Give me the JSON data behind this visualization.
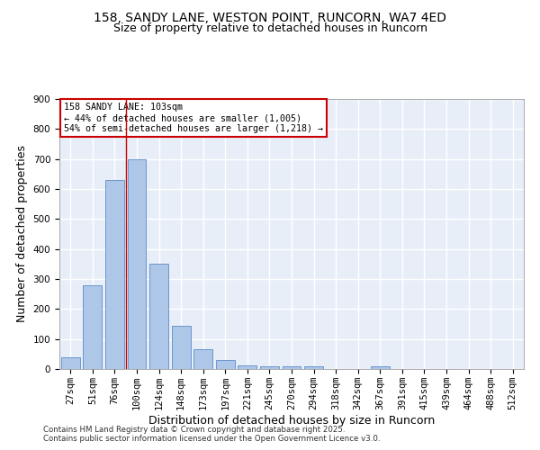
{
  "title": "158, SANDY LANE, WESTON POINT, RUNCORN, WA7 4ED",
  "subtitle": "Size of property relative to detached houses in Runcorn",
  "xlabel": "Distribution of detached houses by size in Runcorn",
  "ylabel": "Number of detached properties",
  "categories": [
    "27sqm",
    "51sqm",
    "76sqm",
    "100sqm",
    "124sqm",
    "148sqm",
    "173sqm",
    "197sqm",
    "221sqm",
    "245sqm",
    "270sqm",
    "294sqm",
    "318sqm",
    "342sqm",
    "367sqm",
    "391sqm",
    "415sqm",
    "439sqm",
    "464sqm",
    "488sqm",
    "512sqm"
  ],
  "values": [
    40,
    280,
    630,
    700,
    350,
    145,
    65,
    30,
    13,
    10,
    8,
    8,
    0,
    0,
    8,
    0,
    0,
    0,
    0,
    0,
    0
  ],
  "bar_color": "#aec6e8",
  "bar_edge_color": "#5b8cc8",
  "bar_width": 0.85,
  "vline_x": 2.5,
  "vline_color": "#cc0000",
  "annotation_text": "158 SANDY LANE: 103sqm\n← 44% of detached houses are smaller (1,005)\n54% of semi-detached houses are larger (1,218) →",
  "annotation_box_color": "#ffffff",
  "annotation_box_edge": "#cc0000",
  "ylim": [
    0,
    900
  ],
  "yticks": [
    0,
    100,
    200,
    300,
    400,
    500,
    600,
    700,
    800,
    900
  ],
  "background_color": "#e8eef8",
  "grid_color": "#ffffff",
  "title_fontsize": 10,
  "subtitle_fontsize": 9,
  "axis_label_fontsize": 9,
  "tick_fontsize": 7.5,
  "footer_line1": "Contains HM Land Registry data © Crown copyright and database right 2025.",
  "footer_line2": "Contains public sector information licensed under the Open Government Licence v3.0."
}
